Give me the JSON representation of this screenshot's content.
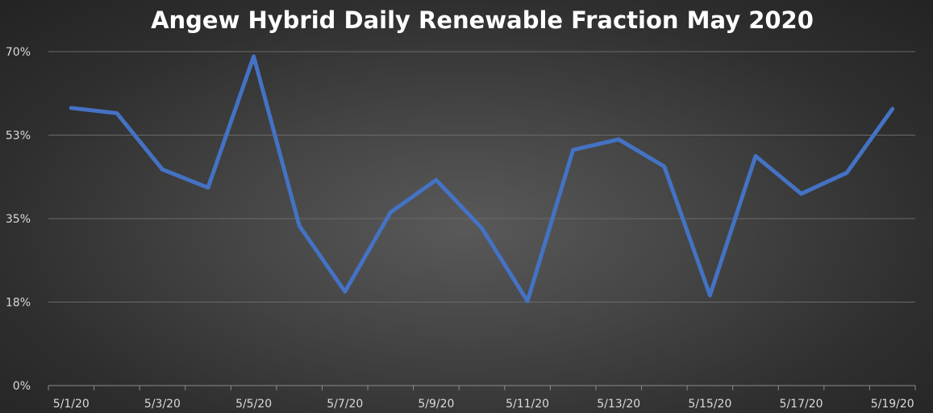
{
  "chart_data": {
    "type": "line",
    "title": "Angew Hybrid Daily Renewable Fraction May 2020",
    "xlabel": "",
    "ylabel": "",
    "categories": [
      "5/1/20",
      "5/2/20",
      "5/3/20",
      "5/4/20",
      "5/5/20",
      "5/6/20",
      "5/7/20",
      "5/8/20",
      "5/9/20",
      "5/10/20",
      "5/11/20",
      "5/12/20",
      "5/13/20",
      "5/14/20",
      "5/15/20",
      "5/16/20",
      "5/17/20",
      "5/18/20",
      "5/19/20"
    ],
    "x_tick_labels": [
      "5/1/20",
      "5/3/20",
      "5/5/20",
      "5/7/20",
      "5/9/20",
      "5/11/20",
      "5/13/20",
      "5/15/20",
      "5/17/20",
      "5/19/20"
    ],
    "y_tick_labels": [
      "0%",
      "18%",
      "35%",
      "53%",
      "70%"
    ],
    "ylim": [
      0,
      70
    ],
    "grid": true,
    "legend": "none",
    "series": [
      {
        "values": [
          58.2,
          57.1,
          45.3,
          41.5,
          69.0,
          33.5,
          19.7,
          36.3,
          43.1,
          33.0,
          17.7,
          49.4,
          51.6,
          45.9,
          18.9,
          48.1,
          40.2,
          44.6,
          58.0
        ],
        "color": "#4472c4"
      }
    ]
  }
}
